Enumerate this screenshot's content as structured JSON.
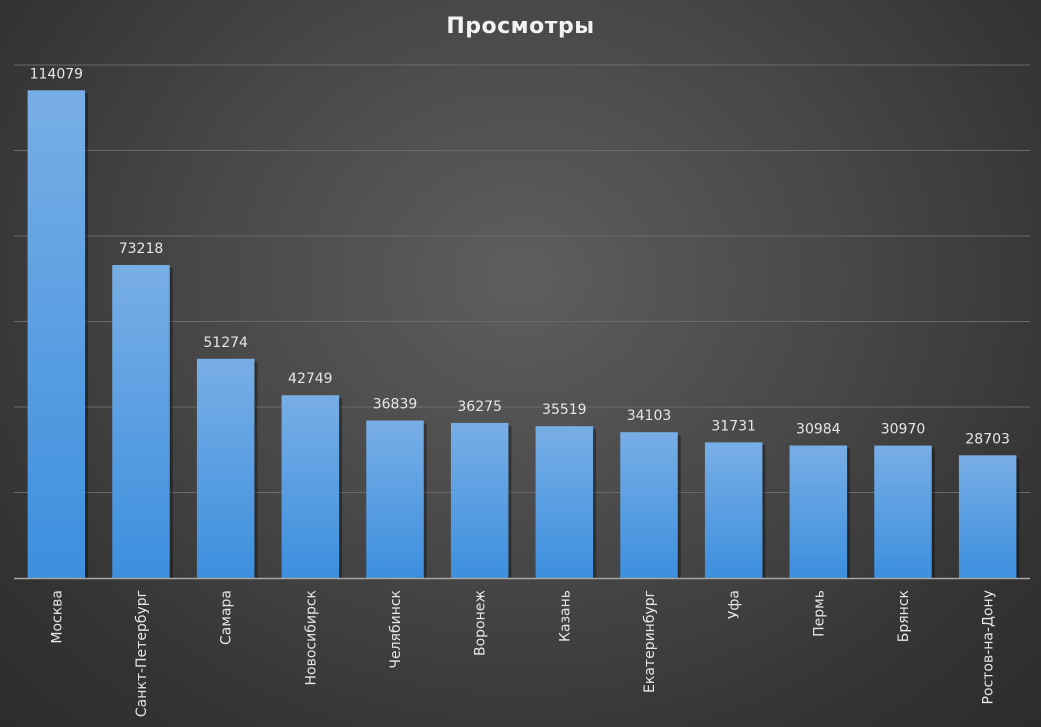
{
  "chart_data": {
    "type": "bar",
    "title": "Просмотры",
    "xlabel": "",
    "ylabel": "",
    "categories": [
      "Москва",
      "Санкт-Петербург",
      "Самара",
      "Новосибирск",
      "Челябинск",
      "Воронеж",
      "Казань",
      "Екатеринбург",
      "Уфа",
      "Пермь",
      "Брянск",
      "Ростов-на-Дону"
    ],
    "values": [
      114079,
      73218,
      51274,
      42749,
      36839,
      36275,
      35519,
      34103,
      31731,
      30984,
      30970,
      28703
    ],
    "ylim": [
      0,
      120000
    ],
    "y_gridline_step": 20000,
    "grid": true,
    "y_tick_labels_shown": false,
    "legend": "none",
    "colors": {
      "bar_top": "#78aee6",
      "bar_bottom": "#3d8fde",
      "gridline": "#6a6a6a",
      "axis": "#a6a6a6",
      "text": "#e6e6e6"
    }
  }
}
